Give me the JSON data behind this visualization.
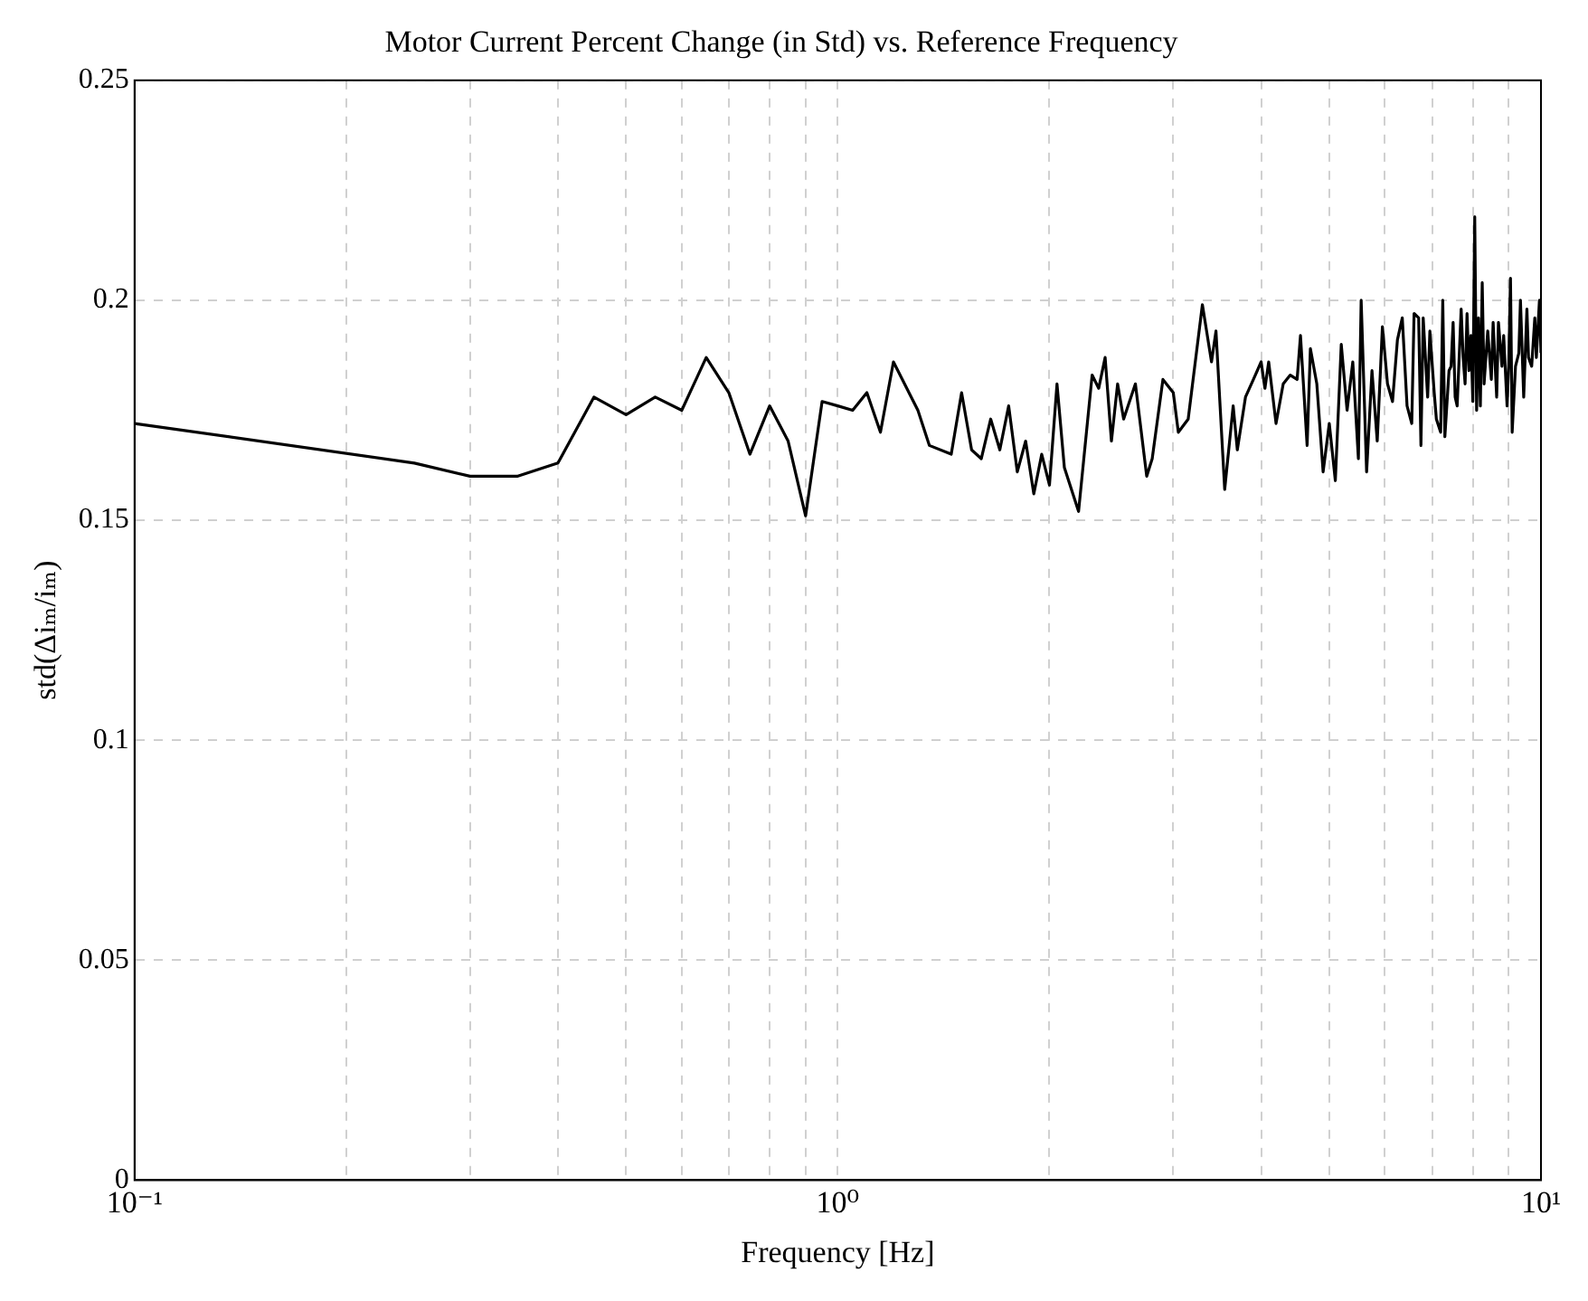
{
  "chart_data": {
    "type": "line",
    "title": "Motor Current Percent Change (in Std) vs. Reference Frequency",
    "xlabel": "Frequency [Hz]",
    "ylabel": "std(Δiₘ/iₘ)",
    "log": "x",
    "grid": true,
    "legend": false,
    "marker": "none",
    "line_style": "solid",
    "xlim": [
      0.1,
      10
    ],
    "ylim": [
      0,
      0.25
    ],
    "xticks": [
      {
        "value": 0.1,
        "label": "10⁻¹"
      },
      {
        "value": 0.2,
        "label": null
      },
      {
        "value": 0.3,
        "label": null
      },
      {
        "value": 0.4,
        "label": null
      },
      {
        "value": 0.5,
        "label": null
      },
      {
        "value": 0.6,
        "label": null
      },
      {
        "value": 0.7,
        "label": null
      },
      {
        "value": 0.8,
        "label": null
      },
      {
        "value": 0.9,
        "label": null
      },
      {
        "value": 1,
        "label": "10⁰"
      },
      {
        "value": 2,
        "label": null
      },
      {
        "value": 3,
        "label": null
      },
      {
        "value": 4,
        "label": null
      },
      {
        "value": 5,
        "label": null
      },
      {
        "value": 6,
        "label": null
      },
      {
        "value": 7,
        "label": null
      },
      {
        "value": 8,
        "label": null
      },
      {
        "value": 9,
        "label": null
      },
      {
        "value": 10,
        "label": "10¹"
      }
    ],
    "yticks": [
      0,
      0.05,
      0.1,
      0.15,
      0.2,
      0.25
    ],
    "series": [
      {
        "color": "#000000",
        "x": [
          0.1,
          0.25,
          0.3,
          0.35,
          0.4,
          0.45,
          0.5,
          0.55,
          0.6,
          0.65,
          0.7,
          0.75,
          0.8,
          0.85,
          0.9,
          0.95,
          1.0,
          1.05,
          1.1,
          1.15,
          1.2,
          1.3,
          1.35,
          1.45,
          1.5,
          1.55,
          1.6,
          1.65,
          1.7,
          1.75,
          1.8,
          1.85,
          1.9,
          1.95,
          2.0,
          2.05,
          2.1,
          2.2,
          2.3,
          2.35,
          2.4,
          2.45,
          2.5,
          2.55,
          2.65,
          2.75,
          2.8,
          2.9,
          3.0,
          3.05,
          3.15,
          3.3,
          3.4,
          3.45,
          3.55,
          3.65,
          3.7,
          3.8,
          3.9,
          4.0,
          4.05,
          4.1,
          4.2,
          4.3,
          4.4,
          4.5,
          4.55,
          4.65,
          4.7,
          4.8,
          4.9,
          5.0,
          5.1,
          5.2,
          5.3,
          5.4,
          5.5,
          5.55,
          5.65,
          5.75,
          5.85,
          5.95,
          6.05,
          6.15,
          6.25,
          6.35,
          6.45,
          6.55,
          6.6,
          6.7,
          6.75,
          6.8,
          6.9,
          6.95,
          7.05,
          7.1,
          7.2,
          7.25,
          7.3,
          7.4,
          7.45,
          7.5,
          7.55,
          7.6,
          7.7,
          7.75,
          7.8,
          7.85,
          7.9,
          7.95,
          8.0,
          8.05,
          8.1,
          8.15,
          8.2,
          8.25,
          8.3,
          8.4,
          8.5,
          8.55,
          8.65,
          8.7,
          8.8,
          8.85,
          8.95,
          9.0,
          9.05,
          9.1,
          9.2,
          9.3,
          9.35,
          9.45,
          9.55,
          9.6,
          9.7,
          9.8,
          9.85,
          9.95,
          10.0
        ],
        "values": [
          0.172,
          0.163,
          0.16,
          0.16,
          0.163,
          0.178,
          0.174,
          0.178,
          0.175,
          0.187,
          0.179,
          0.165,
          0.176,
          0.168,
          0.151,
          0.177,
          0.176,
          0.175,
          0.179,
          0.17,
          0.186,
          0.175,
          0.167,
          0.165,
          0.179,
          0.166,
          0.164,
          0.173,
          0.166,
          0.176,
          0.161,
          0.168,
          0.156,
          0.165,
          0.158,
          0.181,
          0.162,
          0.152,
          0.183,
          0.18,
          0.187,
          0.168,
          0.181,
          0.173,
          0.181,
          0.16,
          0.164,
          0.182,
          0.179,
          0.17,
          0.173,
          0.199,
          0.186,
          0.193,
          0.157,
          0.176,
          0.166,
          0.178,
          0.182,
          0.186,
          0.18,
          0.186,
          0.172,
          0.181,
          0.183,
          0.182,
          0.192,
          0.167,
          0.189,
          0.181,
          0.161,
          0.172,
          0.159,
          0.19,
          0.175,
          0.186,
          0.164,
          0.2,
          0.161,
          0.184,
          0.168,
          0.194,
          0.181,
          0.177,
          0.191,
          0.196,
          0.176,
          0.172,
          0.197,
          0.196,
          0.167,
          0.196,
          0.178,
          0.193,
          0.179,
          0.173,
          0.17,
          0.2,
          0.169,
          0.184,
          0.185,
          0.195,
          0.178,
          0.176,
          0.198,
          0.187,
          0.181,
          0.197,
          0.184,
          0.192,
          0.177,
          0.219,
          0.175,
          0.196,
          0.176,
          0.204,
          0.181,
          0.193,
          0.182,
          0.195,
          0.178,
          0.195,
          0.185,
          0.192,
          0.176,
          0.186,
          0.205,
          0.17,
          0.185,
          0.188,
          0.2,
          0.178,
          0.198,
          0.187,
          0.185,
          0.196,
          0.187,
          0.2,
          0.188
        ]
      }
    ]
  }
}
